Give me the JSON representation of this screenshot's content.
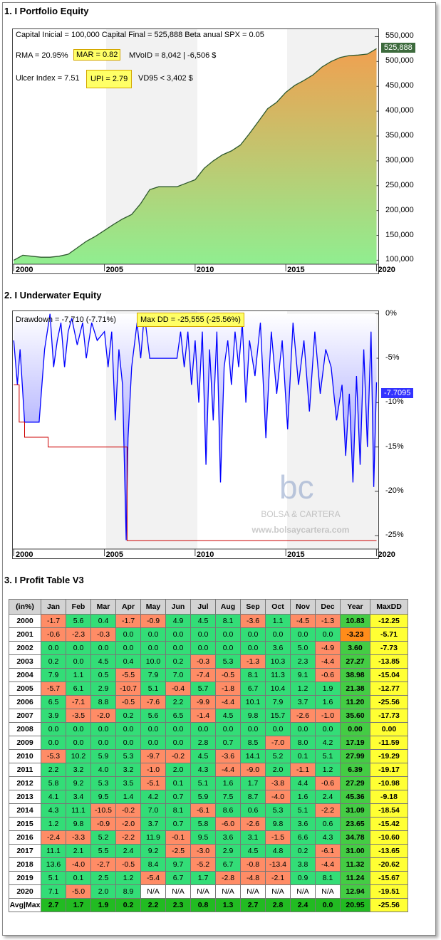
{
  "sections": {
    "equity_title": "1. I Portfolio Equity",
    "underwater_title": "2. I Underwater Equity",
    "table_title": "3. I Profit Table V3"
  },
  "equity": {
    "stats_line1": "Capital Inicial = 100,000  Capital Final = 525,888   Beta anual SPX = 0.05",
    "rma": "RMA = 20.95%",
    "mar": "MAR = 0.82",
    "mvoid": "MVoID = 8,042 | -6,506 $",
    "ulcer": "Ulcer Index = 7.51",
    "upi": "UPI = 2.79",
    "vd95": "VD95 < 3,402 $",
    "last_value_label": "525,888",
    "colors": {
      "fill_top": "#f0a050",
      "fill_bottom": "#90ee90",
      "line": "#2f5a2f",
      "flag": "#3d6b3d"
    }
  },
  "underwater": {
    "drawdown": "Drawdown = -7,710 (-7.71%)",
    "maxdd": "Max DD = -25,555 (-25.56%)",
    "last_value_label": "-7.7095",
    "watermark_logo": "bc",
    "watermark_name": "BOLSA & CARTERA",
    "watermark_url": "www.bolsaycartera.com",
    "colors": {
      "line": "#0000ff",
      "fill": "#8080ff",
      "maxdd_line": "#cc0000",
      "flag": "#3333ff"
    }
  },
  "chart_data": [
    {
      "type": "area",
      "title": "1. I Portfolio Equity",
      "x_ticks": [
        "2000",
        "2005",
        "2010",
        "2015",
        "2020"
      ],
      "y_ticks": [
        "550,000",
        "500,000",
        "450,000",
        "400,000",
        "350,000",
        "300,000",
        "250,000",
        "200,000",
        "150,000",
        "100,000"
      ],
      "ylim": [
        92000,
        565000
      ],
      "xlim": [
        1999.95,
        2020.1
      ],
      "x": [
        2000.0,
        2000.5,
        2001.0,
        2001.5,
        2002.0,
        2002.5,
        2003.0,
        2003.5,
        2004.0,
        2004.5,
        2005.0,
        2005.5,
        2006.0,
        2006.5,
        2007.0,
        2007.5,
        2008.0,
        2008.5,
        2009.0,
        2009.5,
        2010.0,
        2010.5,
        2011.0,
        2011.5,
        2012.0,
        2012.5,
        2013.0,
        2013.5,
        2014.0,
        2014.5,
        2015.0,
        2015.5,
        2016.0,
        2016.5,
        2017.0,
        2017.5,
        2018.0,
        2018.5,
        2019.0,
        2019.5,
        2020.0
      ],
      "values": [
        100000,
        110000,
        108000,
        106000,
        106000,
        108000,
        112000,
        125000,
        138000,
        148000,
        160000,
        172000,
        183000,
        192000,
        214000,
        242000,
        248000,
        248000,
        248000,
        255000,
        262000,
        285000,
        300000,
        312000,
        320000,
        332000,
        355000,
        380000,
        405000,
        418000,
        438000,
        452000,
        462000,
        473000,
        489000,
        500000,
        508000,
        512000,
        513000,
        515000,
        525888
      ]
    },
    {
      "type": "area",
      "title": "2. I Underwater Equity",
      "x_ticks": [
        "2000",
        "2005",
        "2010",
        "2015",
        "2020"
      ],
      "y_ticks": [
        "0%",
        "-5%",
        "-10%",
        "-15%",
        "-20%",
        "-25%"
      ],
      "ylim": [
        -26.5,
        0.3
      ],
      "xlim": [
        1999.95,
        2020.1
      ],
      "x": [
        2000.0,
        2000.2,
        2000.35,
        2000.6,
        2001.0,
        2001.4,
        2001.7,
        2002.0,
        2002.2,
        2002.4,
        2002.6,
        2002.8,
        2003.0,
        2003.2,
        2003.5,
        2003.8,
        2004.0,
        2004.3,
        2004.6,
        2005.0,
        2005.2,
        2005.4,
        2005.6,
        2005.8,
        2006.0,
        2006.2,
        2006.3,
        2006.5,
        2006.8,
        2007.0,
        2007.2,
        2007.5,
        2008.0,
        2008.5,
        2009.0,
        2009.2,
        2009.4,
        2009.6,
        2009.8,
        2010.0,
        2010.2,
        2010.4,
        2010.6,
        2010.8,
        2011.0,
        2011.2,
        2011.4,
        2011.6,
        2011.8,
        2012.0,
        2012.2,
        2012.4,
        2012.6,
        2012.8,
        2013.0,
        2013.3,
        2013.6,
        2013.9,
        2014.2,
        2014.5,
        2014.8,
        2015.1,
        2015.4,
        2015.7,
        2016.0,
        2016.3,
        2016.6,
        2016.9,
        2017.2,
        2017.5,
        2017.8,
        2018.1,
        2018.3,
        2018.5,
        2018.7,
        2018.9,
        2019.1,
        2019.3,
        2019.5,
        2019.7,
        2019.85,
        2020.0
      ],
      "values": [
        -3.0,
        -8.0,
        -4.0,
        -12.2,
        -12.2,
        -12.2,
        -4.0,
        0.0,
        -6.0,
        -3.0,
        -1.0,
        -6.0,
        -2.0,
        -0.5,
        -3.5,
        -1.0,
        -5.0,
        -1.0,
        -3.0,
        -2.0,
        -6.0,
        -2.0,
        -12.0,
        -4.0,
        -8.0,
        -25.5,
        -14.0,
        -6.0,
        -1.0,
        -5.0,
        0.0,
        -5.0,
        -5.0,
        -5.0,
        -5.0,
        -2.0,
        -6.0,
        -2.0,
        -8.0,
        -3.0,
        -10.0,
        -2.0,
        -17.0,
        -4.0,
        -12.0,
        -2.0,
        -19.0,
        -6.0,
        -3.0,
        -8.0,
        -2.0,
        -6.0,
        -1.0,
        -10.0,
        -3.0,
        -7.0,
        -1.0,
        -14.0,
        -2.0,
        -9.0,
        -3.0,
        -13.0,
        -1.0,
        -8.0,
        -3.0,
        -11.0,
        -2.0,
        -9.0,
        -4.0,
        -6.0,
        -12.0,
        -8.0,
        -16.0,
        -9.0,
        -19.0,
        -7.0,
        -17.0,
        -4.0,
        -15.0,
        -2.0,
        -19.5,
        -7.71
      ],
      "max_dd_series": {
        "x": [
          2000.0,
          2000.3,
          2000.3,
          2000.6,
          2000.6,
          2001.9,
          2001.9,
          2003.8,
          2003.8,
          2006.25,
          2006.25,
          2020.0
        ],
        "values": [
          -8.0,
          -8.0,
          -12.2,
          -12.2,
          -13.9,
          -13.9,
          -15.0,
          -15.0,
          -15.0,
          -15.0,
          -25.56,
          -25.56
        ]
      }
    }
  ],
  "profit_table": {
    "headers": [
      "(in%)",
      "Jan",
      "Feb",
      "Mar",
      "Apr",
      "May",
      "Jun",
      "Jul",
      "Aug",
      "Sep",
      "Oct",
      "Nov",
      "Dec",
      "Year",
      "MaxDD"
    ],
    "rows": [
      {
        "year": "2000",
        "months": [
          "-1.7",
          "5.6",
          "0.4",
          "-1.7",
          "-0.9",
          "4.9",
          "4.5",
          "8.1",
          "-3.6",
          "1.1",
          "-4.5",
          "-1.3"
        ],
        "total": "10.83",
        "maxdd": "-12.25"
      },
      {
        "year": "2001",
        "months": [
          "-0.6",
          "-2.3",
          "-0.3",
          "0.0",
          "0.0",
          "0.0",
          "0.0",
          "0.0",
          "0.0",
          "0.0",
          "0.0",
          "0.0"
        ],
        "total": "-3.23",
        "maxdd": "-5.71"
      },
      {
        "year": "2002",
        "months": [
          "0.0",
          "0.0",
          "0.0",
          "0.0",
          "0.0",
          "0.0",
          "0.0",
          "0.0",
          "0.0",
          "3.6",
          "5.0",
          "-4.9"
        ],
        "total": "3.60",
        "maxdd": "-7.73"
      },
      {
        "year": "2003",
        "months": [
          "0.2",
          "0.0",
          "4.5",
          "0.4",
          "10.0",
          "0.2",
          "-0.3",
          "5.3",
          "-1.3",
          "10.3",
          "2.3",
          "-4.4"
        ],
        "total": "27.27",
        "maxdd": "-13.85"
      },
      {
        "year": "2004",
        "months": [
          "7.9",
          "1.1",
          "0.5",
          "-5.5",
          "7.9",
          "7.0",
          "-7.4",
          "-0.5",
          "8.1",
          "11.3",
          "9.1",
          "-0.6"
        ],
        "total": "38.98",
        "maxdd": "-15.04"
      },
      {
        "year": "2005",
        "months": [
          "-5.7",
          "6.1",
          "2.9",
          "-10.7",
          "5.1",
          "-0.4",
          "5.7",
          "-1.8",
          "6.7",
          "10.4",
          "1.2",
          "1.9"
        ],
        "total": "21.38",
        "maxdd": "-12.77"
      },
      {
        "year": "2006",
        "months": [
          "6.5",
          "-7.1",
          "8.8",
          "-0.5",
          "-7.6",
          "2.2",
          "-9.9",
          "-4.4",
          "10.1",
          "7.9",
          "3.7",
          "1.6"
        ],
        "total": "11.20",
        "maxdd": "-25.56"
      },
      {
        "year": "2007",
        "months": [
          "3.9",
          "-3.5",
          "-2.0",
          "0.2",
          "5.6",
          "6.5",
          "-1.4",
          "4.5",
          "9.8",
          "15.7",
          "-2.6",
          "-1.0"
        ],
        "total": "35.60",
        "maxdd": "-17.73"
      },
      {
        "year": "2008",
        "months": [
          "0.0",
          "0.0",
          "0.0",
          "0.0",
          "0.0",
          "0.0",
          "0.0",
          "0.0",
          "0.0",
          "0.0",
          "0.0",
          "0.0"
        ],
        "total": "0.00",
        "maxdd": "0.00"
      },
      {
        "year": "2009",
        "months": [
          "0.0",
          "0.0",
          "0.0",
          "0.0",
          "0.0",
          "0.0",
          "2.8",
          "0.7",
          "8.5",
          "-7.0",
          "8.0",
          "4.2"
        ],
        "total": "17.19",
        "maxdd": "-11.59"
      },
      {
        "year": "2010",
        "months": [
          "-5.3",
          "10.2",
          "5.9",
          "5.3",
          "-9.7",
          "-0.2",
          "4.5",
          "-3.6",
          "14.1",
          "5.2",
          "0.1",
          "5.1"
        ],
        "total": "27.99",
        "maxdd": "-19.29"
      },
      {
        "year": "2011",
        "months": [
          "2.2",
          "3.2",
          "4.0",
          "3.2",
          "-1.0",
          "2.0",
          "4.3",
          "-4.4",
          "-9.0",
          "2.0",
          "-1.1",
          "1.2"
        ],
        "total": "6.39",
        "maxdd": "-19.17"
      },
      {
        "year": "2012",
        "months": [
          "5.8",
          "9.2",
          "5.3",
          "3.5",
          "-5.1",
          "0.1",
          "5.1",
          "1.6",
          "1.7",
          "-3.8",
          "4.4",
          "-0.6"
        ],
        "total": "27.29",
        "maxdd": "-10.98"
      },
      {
        "year": "2013",
        "months": [
          "4.1",
          "3.4",
          "9.5",
          "1.4",
          "4.2",
          "0.7",
          "5.9",
          "7.5",
          "8.7",
          "-4.0",
          "1.6",
          "2.4"
        ],
        "total": "45.36",
        "maxdd": "-9.18"
      },
      {
        "year": "2014",
        "months": [
          "4.3",
          "11.1",
          "-10.5",
          "-0.2",
          "7.0",
          "8.1",
          "-6.1",
          "8.6",
          "0.6",
          "5.3",
          "5.1",
          "-2.2"
        ],
        "total": "31.09",
        "maxdd": "-18.54"
      },
      {
        "year": "2015",
        "months": [
          "1.2",
          "9.8",
          "-0.9",
          "-2.0",
          "3.7",
          "0.7",
          "5.8",
          "-6.0",
          "-2.6",
          "9.8",
          "3.6",
          "0.6"
        ],
        "total": "23.65",
        "maxdd": "-15.42"
      },
      {
        "year": "2016",
        "months": [
          "-2.4",
          "-3.3",
          "5.2",
          "-2.2",
          "11.9",
          "-0.1",
          "9.5",
          "3.6",
          "3.1",
          "-1.5",
          "6.6",
          "4.3"
        ],
        "total": "34.78",
        "maxdd": "-10.60"
      },
      {
        "year": "2017",
        "months": [
          "11.1",
          "2.1",
          "5.5",
          "2.4",
          "9.2",
          "-2.5",
          "-3.0",
          "2.9",
          "4.5",
          "4.8",
          "0.2",
          "-6.1"
        ],
        "total": "31.00",
        "maxdd": "-13.65"
      },
      {
        "year": "2018",
        "months": [
          "13.6",
          "-4.0",
          "-2.7",
          "-0.5",
          "8.4",
          "9.7",
          "-5.2",
          "6.7",
          "-0.8",
          "-13.4",
          "3.8",
          "-4.4"
        ],
        "total": "11.32",
        "maxdd": "-20.62"
      },
      {
        "year": "2019",
        "months": [
          "5.1",
          "0.1",
          "2.5",
          "1.2",
          "-5.4",
          "6.7",
          "1.7",
          "-2.8",
          "-4.8",
          "-2.1",
          "0.9",
          "8.1"
        ],
        "total": "11.24",
        "maxdd": "-15.67"
      },
      {
        "year": "2020",
        "months": [
          "7.1",
          "-5.0",
          "2.0",
          "8.9",
          "N/A",
          "N/A",
          "N/A",
          "N/A",
          "N/A",
          "N/A",
          "N/A",
          "N/A"
        ],
        "total": "12.94",
        "maxdd": "-19.51"
      }
    ],
    "avg_row": {
      "label": "Avg|Max",
      "months": [
        "2.7",
        "1.7",
        "1.9",
        "0.2",
        "2.2",
        "2.3",
        "0.8",
        "1.3",
        "2.7",
        "2.8",
        "2.4",
        "0.0"
      ],
      "total": "20.95",
      "maxdd": "-25.56"
    }
  }
}
